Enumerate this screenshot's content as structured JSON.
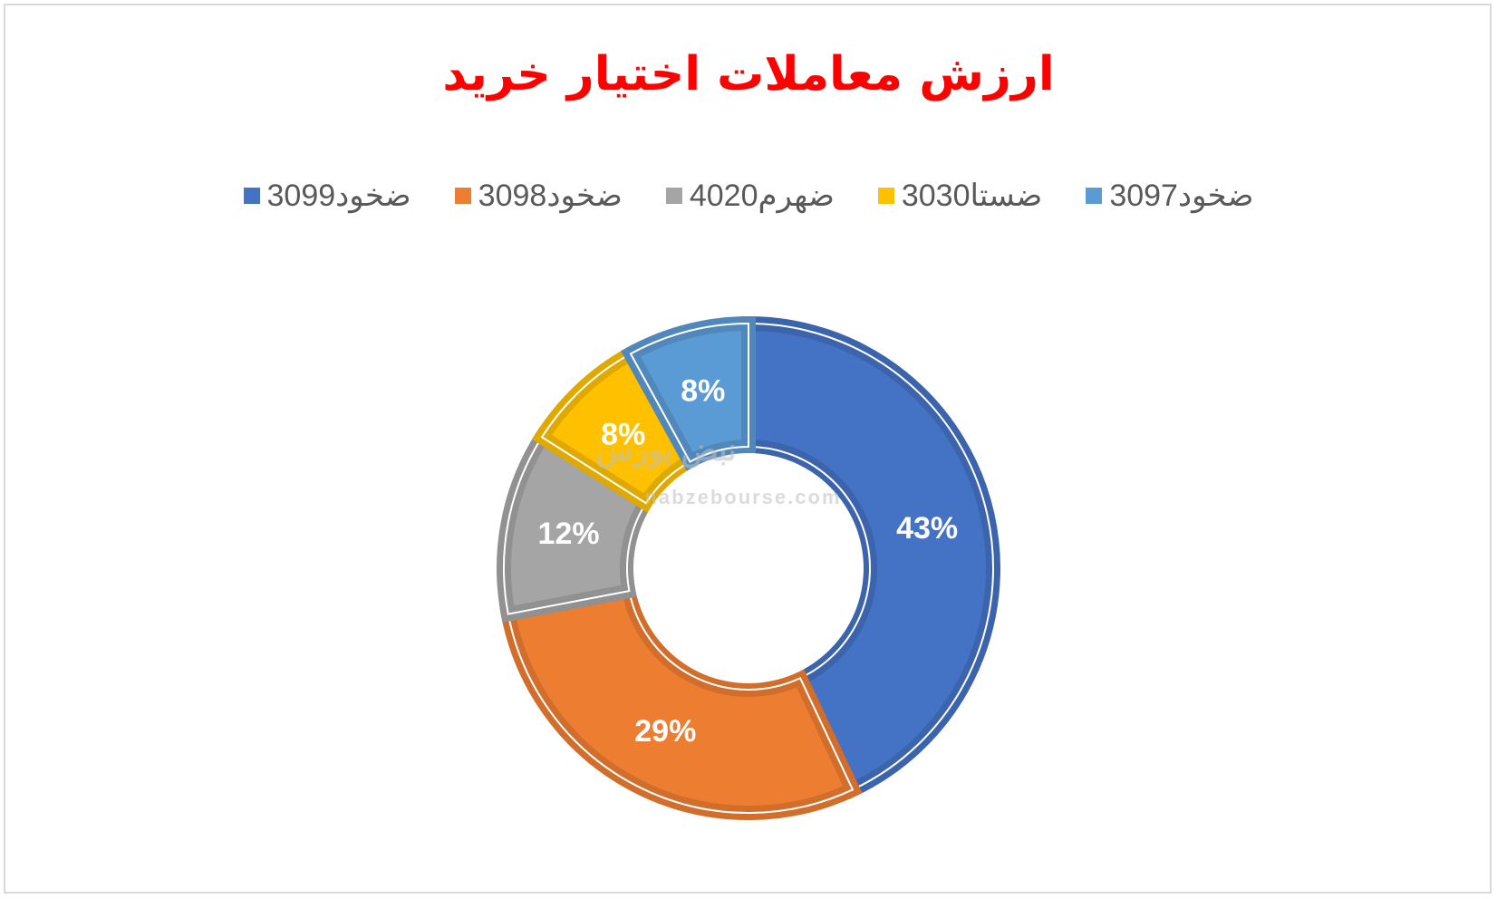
{
  "chart_data": {
    "type": "donut",
    "title": "ارزش معاملات اختیار خرید",
    "title_color": "#ff0000",
    "legend_position": "top",
    "slices": [
      {
        "name": "ضخود3099",
        "value": 43,
        "label": "43%",
        "color": "#4472c4"
      },
      {
        "name": "ضخود3098",
        "value": 29,
        "label": "29%",
        "color": "#ed7d31"
      },
      {
        "name": "ضهرم4020",
        "value": 12,
        "label": "12%",
        "color": "#a5a5a5"
      },
      {
        "name": "ضستا3030",
        "value": 8,
        "label": "8%",
        "color": "#ffc000"
      },
      {
        "name": "ضخود3097",
        "value": 8,
        "label": "8%",
        "color": "#5b9bd5"
      }
    ]
  },
  "watermark": {
    "url_text": "nabzebourse.com",
    "logo_text": "نبض بورس"
  }
}
